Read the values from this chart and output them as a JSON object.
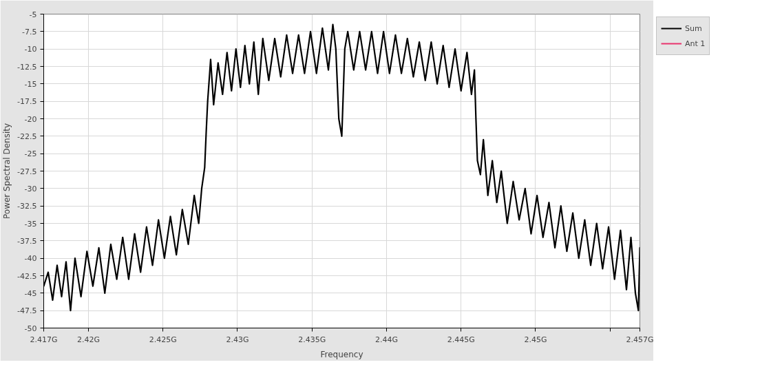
{
  "chart_data": {
    "type": "line",
    "xlabel": "Frequency",
    "ylabel": "Power Spectral Density",
    "xlim": [
      2.417,
      2.457
    ],
    "ylim": [
      -50,
      -5
    ],
    "xticks": [
      {
        "value": 2.417,
        "label": "2.417G"
      },
      {
        "value": 2.42,
        "label": "2.42G"
      },
      {
        "value": 2.425,
        "label": "2.425G"
      },
      {
        "value": 2.43,
        "label": "2.43G"
      },
      {
        "value": 2.435,
        "label": "2.435G"
      },
      {
        "value": 2.44,
        "label": "2.44G"
      },
      {
        "value": 2.445,
        "label": "2.445G"
      },
      {
        "value": 2.45,
        "label": "2.45G"
      },
      {
        "value": 2.455,
        "label": null
      },
      {
        "value": 2.457,
        "label": "2.457G"
      }
    ],
    "yticks": [
      -50,
      -47.5,
      -45,
      -42.5,
      -40,
      -37.5,
      -35,
      -32.5,
      -30,
      -27.5,
      -25,
      -22.5,
      -20,
      -17.5,
      -15,
      -12.5,
      -10,
      -7.5,
      -5
    ],
    "grid": true,
    "legend": "top right",
    "marker": "none",
    "line_style": "solid",
    "series": [
      {
        "name": "Sum",
        "color": "#000000",
        "x": [
          2.417,
          2.4173,
          2.4176,
          2.4179,
          2.4182,
          2.4185,
          2.4188,
          2.4191,
          2.4195,
          2.4199,
          2.4203,
          2.4207,
          2.4211,
          2.4215,
          2.4219,
          2.4223,
          2.4227,
          2.4231,
          2.4235,
          2.4239,
          2.4243,
          2.4247,
          2.4251,
          2.4255,
          2.4259,
          2.4263,
          2.4267,
          2.4271,
          2.4274,
          2.4276,
          2.4278,
          2.4279,
          2.428,
          2.4282,
          2.4284,
          2.4287,
          2.429,
          2.4293,
          2.4296,
          2.4299,
          2.4302,
          2.4305,
          2.4308,
          2.4311,
          2.4314,
          2.4317,
          2.4321,
          2.4325,
          2.4329,
          2.4333,
          2.4337,
          2.4341,
          2.4345,
          2.4349,
          2.4353,
          2.4357,
          2.4361,
          2.4364,
          2.4366,
          2.4368,
          2.437,
          2.4372,
          2.4374,
          2.4378,
          2.4382,
          2.4386,
          2.439,
          2.4394,
          2.4398,
          2.4402,
          2.4406,
          2.441,
          2.4414,
          2.4418,
          2.4422,
          2.4426,
          2.443,
          2.4434,
          2.4438,
          2.4442,
          2.4446,
          2.445,
          2.4454,
          2.4457,
          2.4459,
          2.446,
          2.4461,
          2.4463,
          2.4465,
          2.4468,
          2.4471,
          2.4474,
          2.4477,
          2.4481,
          2.4485,
          2.4489,
          2.4493,
          2.4497,
          2.4501,
          2.4505,
          2.4509,
          2.4513,
          2.4517,
          2.4521,
          2.4525,
          2.4529,
          2.4533,
          2.4537,
          2.4541,
          2.4545,
          2.4549,
          2.4553,
          2.4557,
          2.4561,
          2.4564,
          2.4567,
          2.4569,
          2.457
        ],
        "values": [
          -44,
          -42,
          -46,
          -41,
          -45.5,
          -40.5,
          -47.5,
          -40,
          -45.5,
          -39,
          -44,
          -38.5,
          -45,
          -38,
          -43,
          -37,
          -43,
          -36.5,
          -42,
          -35.5,
          -41,
          -34.5,
          -40,
          -34,
          -39.5,
          -33,
          -38,
          -31,
          -35,
          -30,
          -27,
          -22,
          -17.5,
          -11.5,
          -18,
          -12,
          -16.5,
          -10.5,
          -16,
          -10,
          -15.5,
          -9.5,
          -15,
          -9,
          -16.5,
          -8.5,
          -14.5,
          -8.5,
          -14,
          -8,
          -13.5,
          -8,
          -13.5,
          -7.5,
          -13.5,
          -7,
          -13,
          -6.5,
          -10,
          -20,
          -22.5,
          -10,
          -7.5,
          -13,
          -7.5,
          -13,
          -7.5,
          -13.5,
          -7.5,
          -13.5,
          -8,
          -13.5,
          -8.5,
          -14,
          -9,
          -14.5,
          -9,
          -15,
          -9.5,
          -15.5,
          -10,
          -16,
          -10.5,
          -16.5,
          -13,
          -20,
          -26,
          -28,
          -23,
          -31,
          -26,
          -32,
          -27.5,
          -35,
          -29,
          -34.5,
          -30,
          -36.5,
          -31,
          -37,
          -32,
          -38.5,
          -32.5,
          -39,
          -33.5,
          -40,
          -34.5,
          -41,
          -35,
          -41.5,
          -35.5,
          -43,
          -36,
          -44.5,
          -37,
          -45,
          -47.5,
          -38.5
        ]
      },
      {
        "name": "Ant 1",
        "color": "#e8336d"
      }
    ]
  }
}
